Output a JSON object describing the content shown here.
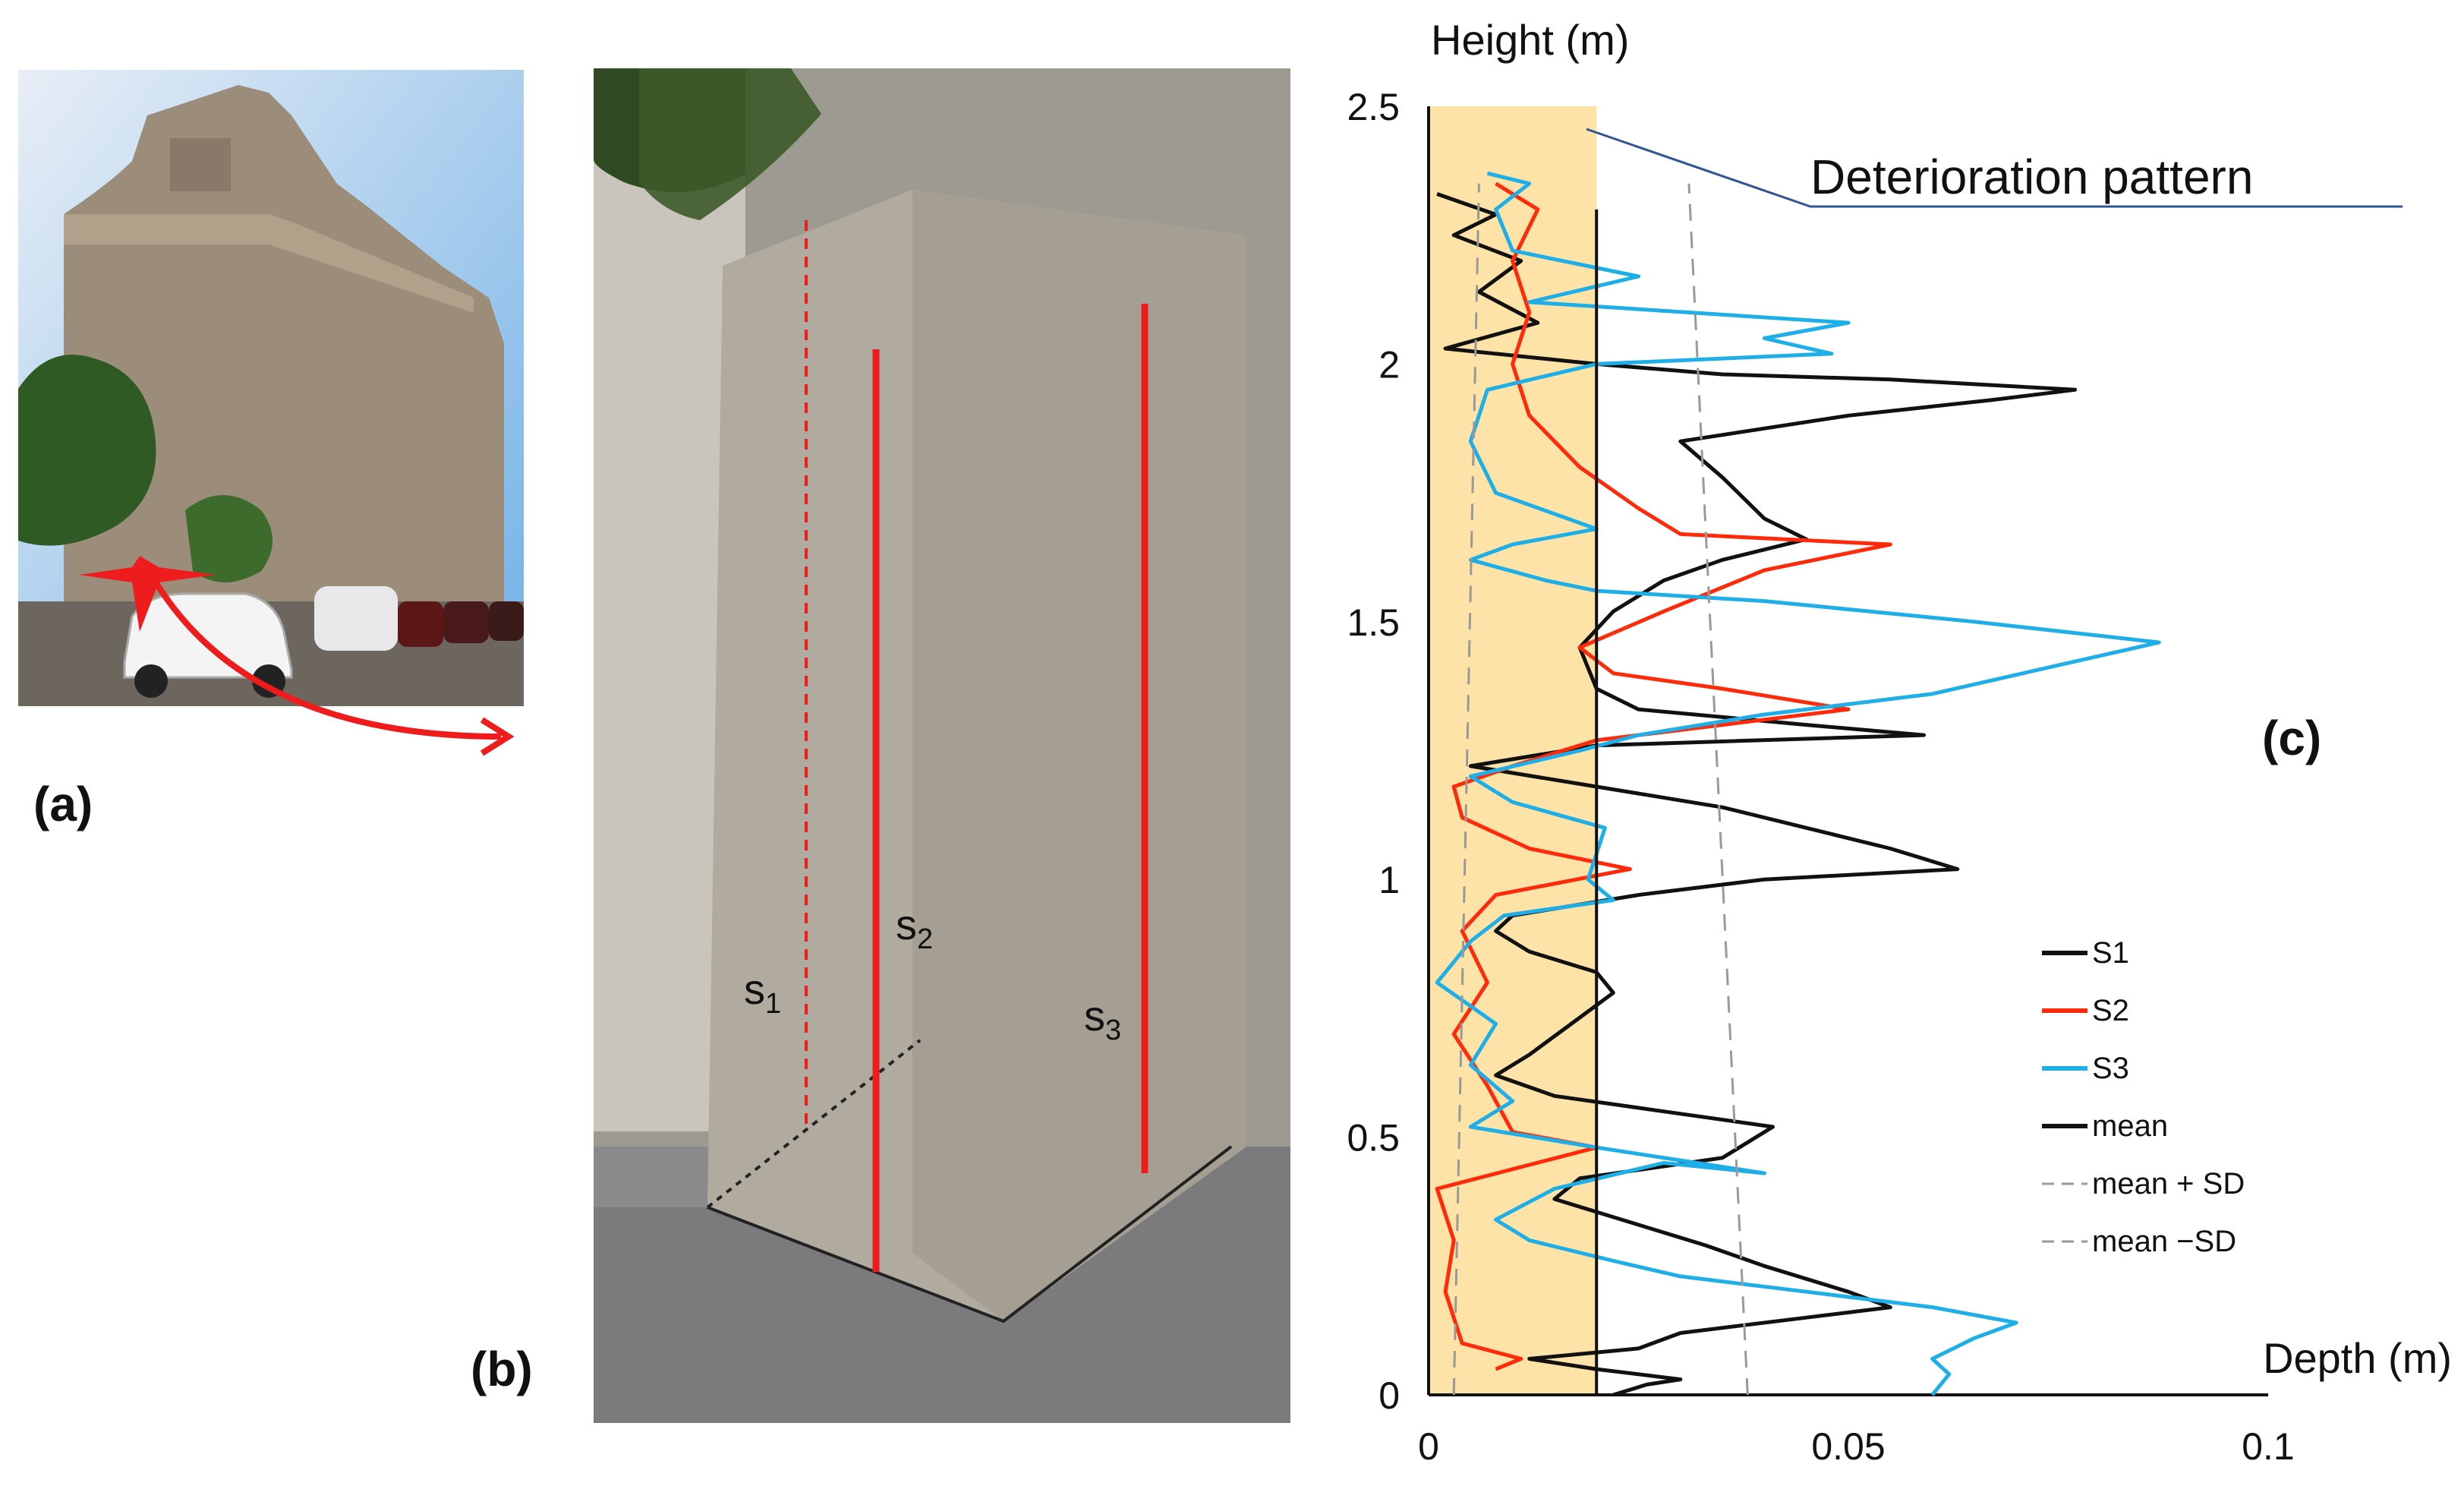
{
  "panels": {
    "a": "(a)",
    "b": "(b)",
    "c": "(c)"
  },
  "pillar_labels": [
    {
      "name": "s1",
      "base": "s",
      "sub": "1"
    },
    {
      "name": "s2",
      "base": "s",
      "sub": "2"
    },
    {
      "name": "s3",
      "base": "s",
      "sub": "3"
    }
  ],
  "colors": {
    "s1": "#111111",
    "s2": "#ff2a0a",
    "s3": "#1eaee8",
    "band": "#fde3a7",
    "marker": "#ee1c1c"
  },
  "chart_data": {
    "type": "line",
    "orientation": "depth (x) vs height (y)",
    "ylabel": "Height (m)",
    "xlabel": "Depth (m)",
    "annotation": "Deterioration pattern",
    "xlim": [
      0,
      0.1
    ],
    "ylim": [
      0,
      2.5
    ],
    "xticks": [
      "0",
      "0.05",
      "0.1"
    ],
    "yticks": [
      "0",
      "0.5",
      "1",
      "1.5",
      "2",
      "2.5"
    ],
    "band": {
      "x_from": 0,
      "x_to": 0.02,
      "y_from": 0,
      "y_to": 2.5
    },
    "legend": {
      "position": "right",
      "entries": [
        "S1",
        "S2",
        "S3",
        "mean",
        "mean + SD",
        "mean −SD"
      ]
    },
    "series": [
      {
        "name": "S1",
        "color": "#111111",
        "points": [
          [
            0.022,
            0
          ],
          [
            0.026,
            0.02
          ],
          [
            0.03,
            0.03
          ],
          [
            0.02,
            0.05
          ],
          [
            0.012,
            0.07
          ],
          [
            0.025,
            0.09
          ],
          [
            0.03,
            0.12
          ],
          [
            0.045,
            0.15
          ],
          [
            0.055,
            0.17
          ],
          [
            0.05,
            0.2
          ],
          [
            0.04,
            0.25
          ],
          [
            0.033,
            0.29
          ],
          [
            0.025,
            0.33
          ],
          [
            0.015,
            0.38
          ],
          [
            0.018,
            0.42
          ],
          [
            0.035,
            0.46
          ],
          [
            0.041,
            0.52
          ],
          [
            0.028,
            0.55
          ],
          [
            0.015,
            0.58
          ],
          [
            0.008,
            0.62
          ],
          [
            0.012,
            0.66
          ],
          [
            0.017,
            0.72
          ],
          [
            0.022,
            0.78
          ],
          [
            0.02,
            0.82
          ],
          [
            0.012,
            0.86
          ],
          [
            0.008,
            0.9
          ],
          [
            0.01,
            0.93
          ],
          [
            0.025,
            0.97
          ],
          [
            0.04,
            1.0
          ],
          [
            0.063,
            1.02
          ],
          [
            0.055,
            1.06
          ],
          [
            0.045,
            1.1
          ],
          [
            0.035,
            1.14
          ],
          [
            0.02,
            1.18
          ],
          [
            0.005,
            1.22
          ],
          [
            0.02,
            1.26
          ],
          [
            0.059,
            1.28
          ],
          [
            0.045,
            1.3
          ],
          [
            0.025,
            1.33
          ],
          [
            0.02,
            1.37
          ],
          [
            0.018,
            1.45
          ],
          [
            0.022,
            1.52
          ],
          [
            0.028,
            1.58
          ],
          [
            0.035,
            1.62
          ],
          [
            0.045,
            1.66
          ],
          [
            0.04,
            1.7
          ],
          [
            0.035,
            1.78
          ],
          [
            0.03,
            1.85
          ],
          [
            0.05,
            1.9
          ],
          [
            0.067,
            1.93
          ],
          [
            0.077,
            1.95
          ],
          [
            0.055,
            1.97
          ],
          [
            0.035,
            1.98
          ],
          [
            0.02,
            2.0
          ],
          [
            0.002,
            2.03
          ],
          [
            0.013,
            2.08
          ],
          [
            0.006,
            2.14
          ],
          [
            0.011,
            2.2
          ],
          [
            0.003,
            2.25
          ],
          [
            0.008,
            2.29
          ],
          [
            0.001,
            2.33
          ]
        ]
      },
      {
        "name": "S2",
        "color": "#ff2a0a",
        "points": [
          [
            0.008,
            0.05
          ],
          [
            0.011,
            0.07
          ],
          [
            0.004,
            0.1
          ],
          [
            0.002,
            0.2
          ],
          [
            0.003,
            0.3
          ],
          [
            0.001,
            0.4
          ],
          [
            0.02,
            0.48
          ],
          [
            0.01,
            0.51
          ],
          [
            0.007,
            0.6
          ],
          [
            0.003,
            0.7
          ],
          [
            0.007,
            0.8
          ],
          [
            0.004,
            0.9
          ],
          [
            0.008,
            0.97
          ],
          [
            0.024,
            1.02
          ],
          [
            0.012,
            1.06
          ],
          [
            0.004,
            1.12
          ],
          [
            0.003,
            1.18
          ],
          [
            0.01,
            1.22
          ],
          [
            0.02,
            1.27
          ],
          [
            0.035,
            1.3
          ],
          [
            0.05,
            1.33
          ],
          [
            0.035,
            1.37
          ],
          [
            0.022,
            1.4
          ],
          [
            0.018,
            1.45
          ],
          [
            0.028,
            1.52
          ],
          [
            0.04,
            1.6
          ],
          [
            0.055,
            1.65
          ],
          [
            0.03,
            1.67
          ],
          [
            0.025,
            1.72
          ],
          [
            0.018,
            1.8
          ],
          [
            0.012,
            1.9
          ],
          [
            0.01,
            2.0
          ],
          [
            0.012,
            2.1
          ],
          [
            0.01,
            2.2
          ],
          [
            0.013,
            2.3
          ],
          [
            0.008,
            2.35
          ]
        ]
      },
      {
        "name": "S3",
        "color": "#1eaee8",
        "points": [
          [
            0.06,
            0
          ],
          [
            0.062,
            0.04
          ],
          [
            0.06,
            0.07
          ],
          [
            0.065,
            0.11
          ],
          [
            0.07,
            0.14
          ],
          [
            0.06,
            0.17
          ],
          [
            0.045,
            0.2
          ],
          [
            0.03,
            0.23
          ],
          [
            0.022,
            0.26
          ],
          [
            0.012,
            0.3
          ],
          [
            0.008,
            0.34
          ],
          [
            0.015,
            0.4
          ],
          [
            0.028,
            0.45
          ],
          [
            0.04,
            0.43
          ],
          [
            0.02,
            0.48
          ],
          [
            0.005,
            0.52
          ],
          [
            0.01,
            0.57
          ],
          [
            0.005,
            0.64
          ],
          [
            0.008,
            0.72
          ],
          [
            0.001,
            0.8
          ],
          [
            0.005,
            0.88
          ],
          [
            0.009,
            0.93
          ],
          [
            0.022,
            0.96
          ],
          [
            0.019,
            1.0
          ],
          [
            0.02,
            1.05
          ],
          [
            0.021,
            1.1
          ],
          [
            0.01,
            1.15
          ],
          [
            0.005,
            1.2
          ],
          [
            0.018,
            1.25
          ],
          [
            0.025,
            1.28
          ],
          [
            0.04,
            1.32
          ],
          [
            0.06,
            1.36
          ],
          [
            0.087,
            1.46
          ],
          [
            0.065,
            1.5
          ],
          [
            0.04,
            1.54
          ],
          [
            0.02,
            1.56
          ],
          [
            0.014,
            1.58
          ],
          [
            0.005,
            1.62
          ],
          [
            0.01,
            1.65
          ],
          [
            0.02,
            1.68
          ],
          [
            0.008,
            1.75
          ],
          [
            0.005,
            1.85
          ],
          [
            0.007,
            1.95
          ],
          [
            0.02,
            2.0
          ],
          [
            0.048,
            2.02
          ],
          [
            0.04,
            2.05
          ],
          [
            0.05,
            2.08
          ],
          [
            0.012,
            2.12
          ],
          [
            0.025,
            2.17
          ],
          [
            0.01,
            2.22
          ],
          [
            0.008,
            2.3
          ],
          [
            0.012,
            2.35
          ],
          [
            0.007,
            2.37
          ]
        ]
      },
      {
        "name": "mean",
        "color": "#111111",
        "values_x": [
          0.02,
          0.02
        ],
        "values_y": [
          0,
          2.3
        ]
      },
      {
        "name": "mean + SD",
        "color": "#999999",
        "dash": true,
        "values_x": [
          0.038,
          0.031
        ],
        "values_y": [
          0,
          2.35
        ]
      },
      {
        "name": "mean −SD",
        "color": "#999999",
        "dash": true,
        "values_x": [
          0.003,
          0.006
        ],
        "values_y": [
          0,
          2.35
        ]
      }
    ]
  }
}
